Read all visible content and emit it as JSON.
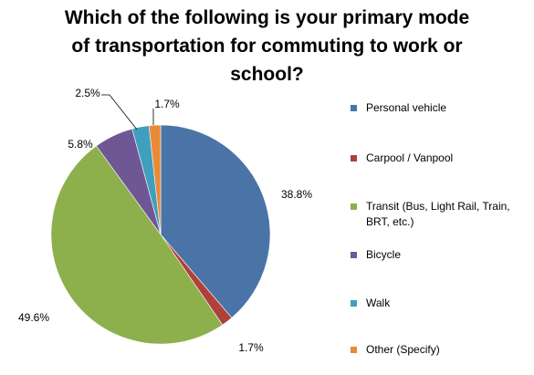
{
  "chart_data": {
    "type": "pie",
    "title": "Which of the following is your primary mode of transportation for commuting to work or school?",
    "title_lines": [
      "Which of the following is your primary mode",
      "of transportation for commuting to work or",
      "school?"
    ],
    "legend_position": "right",
    "slices": [
      {
        "label": "Personal vehicle",
        "value": 38.8,
        "value_label": "38.8%",
        "color": "#4a74a8"
      },
      {
        "label": "Carpool / Vanpool",
        "value": 1.7,
        "value_label": "1.7%",
        "color": "#b0403b"
      },
      {
        "label": "Transit (Bus, Light Rail, Train, BRT, etc.)",
        "value": 49.6,
        "value_label": "49.6%",
        "color": "#8db04c"
      },
      {
        "label": "Bicycle",
        "value": 5.8,
        "value_label": "5.8%",
        "color": "#6f5795"
      },
      {
        "label": "Walk",
        "value": 2.5,
        "value_label": "2.5%",
        "color": "#3f9fbc"
      },
      {
        "label": "Other (Specify)",
        "value": 1.7,
        "value_label": "1.7%",
        "color": "#e98a38"
      }
    ]
  }
}
